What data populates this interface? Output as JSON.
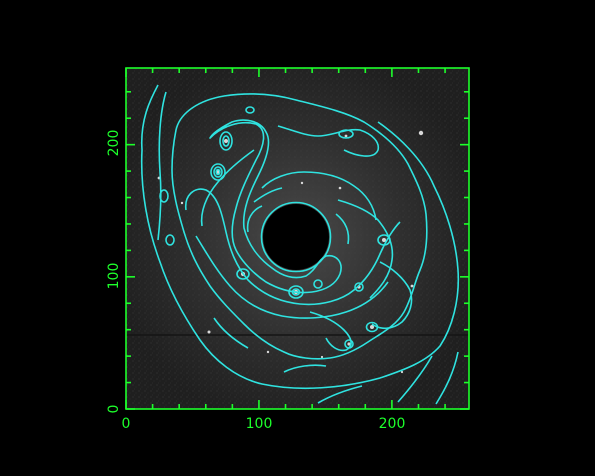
{
  "colors": {
    "background": "#000000",
    "axes": "#1dff2b",
    "contour": "#2fe3e0",
    "image_base": "#2b2b2b"
  },
  "axes": {
    "x_ticks": [
      "0",
      "100",
      "200"
    ],
    "y_ticks": [
      "0",
      "100",
      "200"
    ]
  },
  "chart_data": {
    "type": "heatmap",
    "title": "",
    "xlabel": "",
    "ylabel": "",
    "xlim": [
      0,
      258
    ],
    "ylim": [
      0,
      258
    ],
    "x_tick_values": [
      0,
      100,
      200
    ],
    "y_tick_values": [
      0,
      100,
      200
    ],
    "overlay": "contours"
  }
}
